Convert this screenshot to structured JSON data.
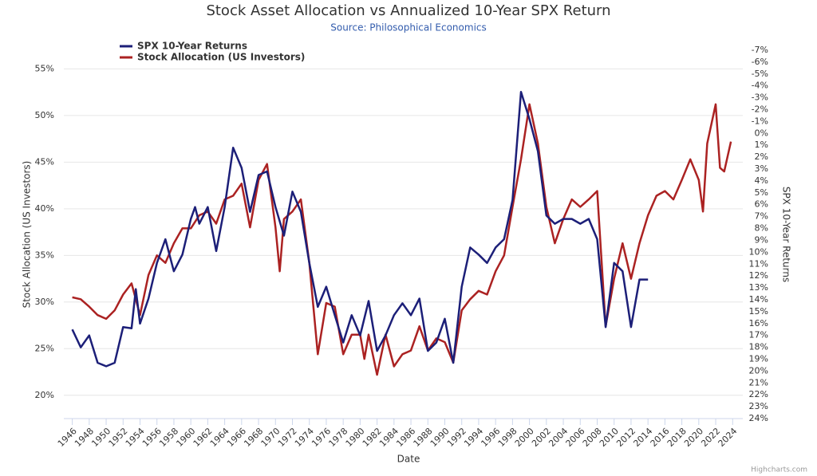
{
  "chart_data": {
    "type": "line",
    "title": "Stock Asset Allocation vs Annualized 10-Year SPX Return",
    "subtitle": "Source: Philosophical Economics",
    "x_label": "Date",
    "y_label": "Stock Allocation (US Investors)",
    "y2_label": "SPX 10-Year Returns",
    "credit": "Highcharts.com",
    "xlim": [
      1945,
      2025.2
    ],
    "xticks": [
      1946,
      1948,
      1950,
      1952,
      1954,
      1956,
      1958,
      1960,
      1962,
      1964,
      1966,
      1968,
      1970,
      1972,
      1974,
      1976,
      1978,
      1980,
      1982,
      1984,
      1986,
      1988,
      1990,
      1992,
      1994,
      1996,
      1998,
      2000,
      2002,
      2004,
      2006,
      2008,
      2010,
      2012,
      2014,
      2016,
      2018,
      2020,
      2022,
      2024
    ],
    "ylim": [
      17.5,
      57
    ],
    "yticks": [
      {
        "value": 20,
        "label": "20%"
      },
      {
        "value": 25,
        "label": "25%"
      },
      {
        "value": 30,
        "label": "30%"
      },
      {
        "value": 35,
        "label": "35%"
      },
      {
        "value": 40,
        "label": "40%"
      },
      {
        "value": 45,
        "label": "45%"
      },
      {
        "value": 50,
        "label": "50%"
      },
      {
        "value": 55,
        "label": "55%"
      }
    ],
    "y2lim": [
      -7,
      24
    ],
    "y2_reversed": true,
    "y2ticks": [
      {
        "value": -7,
        "label": "-7%"
      },
      {
        "value": -6,
        "label": "-6%"
      },
      {
        "value": -5,
        "label": "-5%"
      },
      {
        "value": -4,
        "label": "-4%"
      },
      {
        "value": -3,
        "label": "-3%"
      },
      {
        "value": -2,
        "label": "-2%"
      },
      {
        "value": -1,
        "label": "-1%"
      },
      {
        "value": 0,
        "label": "0%"
      },
      {
        "value": 1,
        "label": "1%"
      },
      {
        "value": 2,
        "label": "2%"
      },
      {
        "value": 3,
        "label": "3%"
      },
      {
        "value": 4,
        "label": "4%"
      },
      {
        "value": 5,
        "label": "5%"
      },
      {
        "value": 6,
        "label": "6%"
      },
      {
        "value": 7,
        "label": "7%"
      },
      {
        "value": 8,
        "label": "8%"
      },
      {
        "value": 9,
        "label": "9%"
      },
      {
        "value": 10,
        "label": "10%"
      },
      {
        "value": 11,
        "label": "11%"
      },
      {
        "value": 12,
        "label": "12%"
      },
      {
        "value": 13,
        "label": "13%"
      },
      {
        "value": 14,
        "label": "14%"
      },
      {
        "value": 15,
        "label": "15%"
      },
      {
        "value": 16,
        "label": "16%"
      },
      {
        "value": 17,
        "label": "17%"
      },
      {
        "value": 18,
        "label": "18%"
      },
      {
        "value": 19,
        "label": "19%"
      },
      {
        "value": 20,
        "label": "20%"
      },
      {
        "value": 21,
        "label": "21%"
      },
      {
        "value": 22,
        "label": "22%"
      },
      {
        "value": 23,
        "label": "23%"
      },
      {
        "value": 24,
        "label": "24%"
      }
    ],
    "grid": true,
    "legend_position": "top-left",
    "series": [
      {
        "name": "SPX 10-Year Returns",
        "color": "#1c1f78",
        "axis": "y2",
        "x": [
          1946,
          1947,
          1948,
          1949,
          1950,
          1951,
          1952,
          1953,
          1953.5,
          1954,
          1955,
          1956,
          1957,
          1958,
          1959,
          1960,
          1960.5,
          1961,
          1962,
          1963,
          1964,
          1965,
          1966,
          1967,
          1968,
          1969,
          1970,
          1971,
          1972,
          1973,
          1974,
          1975,
          1976,
          1977,
          1978,
          1979,
          1980,
          1981,
          1982,
          1983,
          1984,
          1985,
          1986,
          1987,
          1988,
          1989,
          1990,
          1991,
          1992,
          1993,
          1994,
          1995,
          1996,
          1997,
          1998,
          1999,
          2000,
          2001,
          2002,
          2003,
          2004,
          2005,
          2006,
          2007,
          2008,
          2009,
          2010,
          2011,
          2012,
          2013,
          2014
        ],
        "values": [
          16.5,
          18.0,
          17.0,
          19.3,
          19.6,
          19.3,
          16.3,
          16.4,
          13.1,
          16.0,
          13.9,
          10.9,
          8.9,
          11.6,
          10.2,
          7.2,
          6.2,
          7.6,
          6.2,
          9.9,
          6.2,
          1.2,
          2.9,
          6.6,
          3.5,
          3.2,
          6.2,
          8.6,
          4.9,
          6.6,
          10.9,
          14.6,
          12.9,
          15.3,
          17.6,
          15.3,
          17.0,
          14.1,
          18.3,
          17.0,
          15.3,
          14.3,
          15.3,
          13.9,
          18.3,
          17.6,
          15.6,
          19.3,
          12.9,
          9.6,
          10.2,
          10.9,
          9.6,
          8.9,
          5.6,
          -3.5,
          -1.2,
          1.5,
          6.9,
          7.6,
          7.2,
          7.2,
          7.6,
          7.2,
          8.9,
          16.3,
          10.9,
          11.6,
          16.3,
          12.3,
          12.3
        ]
      },
      {
        "name": "Stock Allocation (US Investors)",
        "color": "#ab2222",
        "x": [
          1946,
          1947,
          1948,
          1949,
          1950,
          1951,
          1952,
          1953,
          1954,
          1955,
          1956,
          1957,
          1958,
          1959,
          1960,
          1961,
          1962,
          1963,
          1964,
          1965,
          1966,
          1967,
          1968,
          1969,
          1970,
          1970.5,
          1971,
          1972,
          1973,
          1974,
          1975,
          1976,
          1977,
          1978,
          1979,
          1980,
          1980.5,
          1981,
          1982,
          1983,
          1984,
          1985,
          1986,
          1987,
          1988,
          1989,
          1990,
          1991,
          1992,
          1993,
          1994,
          1995,
          1996,
          1997,
          1998,
          1999,
          2000,
          2001,
          2002,
          2003,
          2004,
          2005,
          2006,
          2007,
          2008,
          2009,
          2010,
          2011,
          2012,
          2013,
          2014,
          2015,
          2016,
          2017,
          2018,
          2019,
          2020,
          2020.5,
          2021,
          2022,
          2022.5,
          2023,
          2023.8
        ],
        "values": [
          30.5,
          30.3,
          29.5,
          28.6,
          28.2,
          29.1,
          30.8,
          32.0,
          28.6,
          32.9,
          35.0,
          34.2,
          36.3,
          37.9,
          37.9,
          39.3,
          39.7,
          38.4,
          41.0,
          41.4,
          42.7,
          38.0,
          43.1,
          44.8,
          38.0,
          33.3,
          38.9,
          39.7,
          41.0,
          34.2,
          24.4,
          29.9,
          29.5,
          24.4,
          26.5,
          26.5,
          23.9,
          26.5,
          22.2,
          26.5,
          23.1,
          24.4,
          24.8,
          27.4,
          24.8,
          26.1,
          25.7,
          23.5,
          29.1,
          30.3,
          31.2,
          30.8,
          33.3,
          35.0,
          40.2,
          45.3,
          51.2,
          47.0,
          40.2,
          36.3,
          38.9,
          41.0,
          40.2,
          41.0,
          41.9,
          27.4,
          32.5,
          36.3,
          32.5,
          36.3,
          39.3,
          41.4,
          41.9,
          41.0,
          43.1,
          45.3,
          43.1,
          39.7,
          47.0,
          51.2,
          44.4,
          44.0,
          47.2
        ]
      }
    ]
  }
}
